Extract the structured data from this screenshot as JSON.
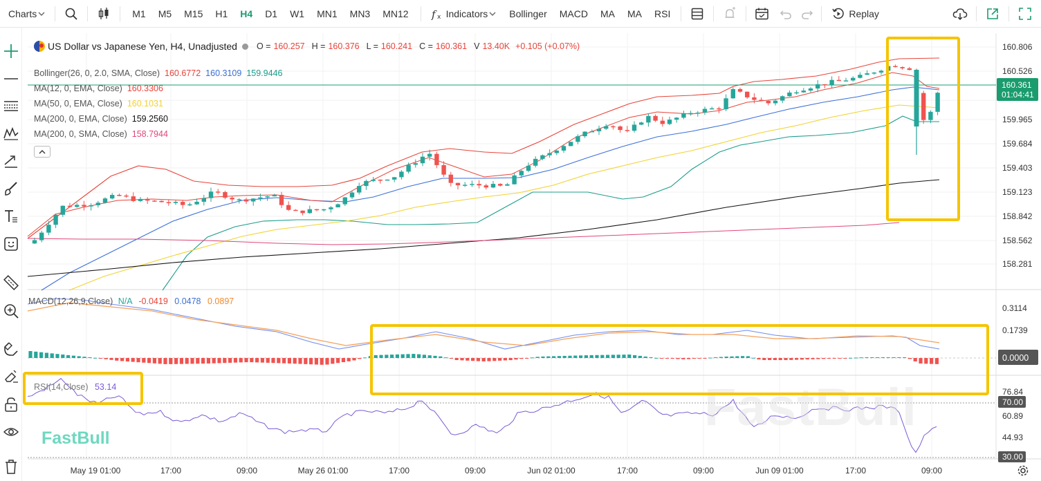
{
  "toolbar": {
    "charts_label": "Charts",
    "timeframes": [
      "M1",
      "M5",
      "M15",
      "H1",
      "H4",
      "D1",
      "W1",
      "MN1",
      "MN3",
      "MN12"
    ],
    "active_timeframe": "H4",
    "indicators_label": "Indicators",
    "quick_indicators": [
      "Bollinger",
      "MACD",
      "MA",
      "MA",
      "RSI"
    ],
    "replay_label": "Replay"
  },
  "instrument": {
    "title": "US Dollar vs Japanese Yen, H4, Unadjusted",
    "o_label": "O =",
    "o": "160.257",
    "h_label": "H =",
    "h": "160.376",
    "l_label": "L =",
    "l": "160.241",
    "c_label": "C =",
    "c": "160.361",
    "v_label": "V",
    "v": "13.40K",
    "change": "+0.105 (+0.07%)"
  },
  "indicators": [
    {
      "label": "Bollinger(26, 0, 2.0, SMA, Close)",
      "values": [
        "160.6772",
        "160.3109",
        "159.9446"
      ],
      "colors": [
        "#e8443a",
        "#3b6fd8",
        "#1a9c8a"
      ]
    },
    {
      "label": "MA(12, 0, EMA, Close)",
      "values": [
        "160.3306"
      ],
      "colors": [
        "#e8443a"
      ]
    },
    {
      "label": "MA(50, 0, EMA, Close)",
      "values": [
        "160.1031"
      ],
      "colors": [
        "#f2d22e"
      ]
    },
    {
      "label": "MA(200, 0, EMA, Close)",
      "values": [
        "159.2560"
      ],
      "colors": [
        "#111111"
      ]
    },
    {
      "label": "MA(200, 0, SMA, Close)",
      "values": [
        "158.7944"
      ],
      "colors": [
        "#e0457a"
      ]
    }
  ],
  "macd": {
    "label": "MACD(12,26,9,Close)",
    "na": "N/A",
    "values": [
      "-0.0419",
      "0.0478",
      "0.0897"
    ],
    "colors": [
      "#e8443a",
      "#3b6fd8",
      "#f08a2e"
    ]
  },
  "rsi": {
    "label": "RSI(14,Close)",
    "value": "53.14"
  },
  "price_axis": {
    "ticks": [
      "160.806",
      "160.526",
      "160.245",
      "159.965",
      "159.684",
      "159.403",
      "159.123",
      "158.842",
      "158.562",
      "158.281"
    ],
    "current_price": "160.361",
    "countdown": "01:04:41"
  },
  "macd_axis": {
    "ticks": [
      "0.3114",
      "0.1739"
    ],
    "current": "0.0000"
  },
  "rsi_axis": {
    "ticks": [
      "76.84",
      "60.89",
      "44.93"
    ],
    "level_high": "70.00",
    "level_low": "30.00"
  },
  "time_axis": [
    "May 19 01:00",
    "17:00",
    "09:00",
    "May 26 01:00",
    "17:00",
    "09:00",
    "Jun 02 01:00",
    "17:00",
    "09:00",
    "Jun 09 01:00",
    "17:00",
    "09:00"
  ],
  "watermark": "FastBull",
  "logo": "FastBull",
  "colors": {
    "up": "#26a69a",
    "down": "#ef5350",
    "accent": "#1a9c6e",
    "highlight": "#f5c400"
  },
  "icons": [
    "search-icon",
    "candle-type-icon",
    "function-icon",
    "layout-icon",
    "alert-icon",
    "calendar-icon",
    "undo-icon",
    "redo-icon",
    "replay-icon",
    "cloud-icon",
    "share-icon",
    "fullscreen-icon",
    "crosshair-icon",
    "line-icon",
    "fib-icon",
    "pattern-icon",
    "trend-icon",
    "brush-icon",
    "text-icon",
    "emoji-icon",
    "ruler-icon",
    "zoom-icon",
    "magnet-icon",
    "eraser-icon",
    "lock-icon",
    "eye-icon",
    "trash-icon",
    "settings-icon"
  ]
}
